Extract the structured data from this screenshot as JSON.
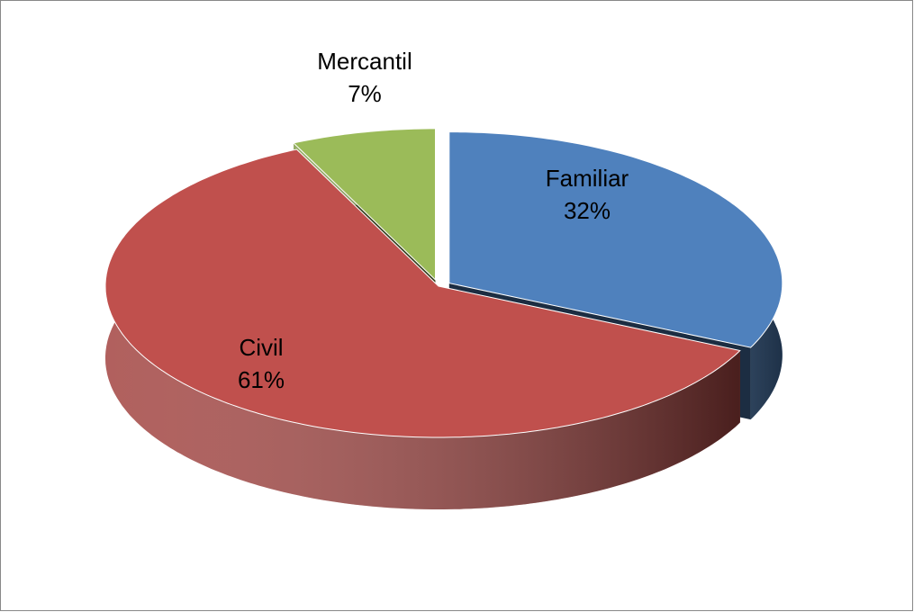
{
  "chart_data": {
    "type": "pie",
    "categories": [
      "Familiar",
      "Civil",
      "Mercantil"
    ],
    "values": [
      32,
      61,
      7
    ],
    "value_labels": [
      "32%",
      "61%",
      "7%"
    ],
    "colors": [
      "#4f81bd",
      "#c0504d",
      "#9bbb59"
    ]
  }
}
